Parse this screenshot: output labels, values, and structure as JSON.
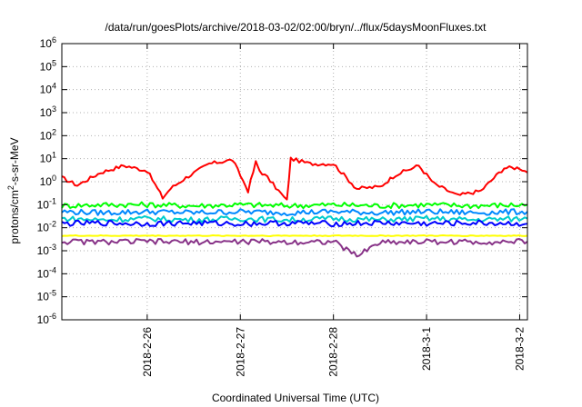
{
  "chart_data": {
    "type": "line",
    "title": "/data/run/goesPlots/archive/2018-03-02/02:00/bryn/../flux/5daysMoonFluxes.txt",
    "xlabel": "Coordinated Universal Time (UTC)",
    "ylabel": "protons/cm²-s-sr-MeV",
    "ylabel_parts": {
      "before": "protons/cm",
      "sup": "2",
      "after": "-s-sr-MeV"
    },
    "y_scale": "log",
    "ylim": [
      1e-06,
      1000000.0
    ],
    "y_ticks": [
      {
        "value": 1e-06,
        "base": "10",
        "exp": "-6"
      },
      {
        "value": 1e-05,
        "base": "10",
        "exp": "-5"
      },
      {
        "value": 0.0001,
        "base": "10",
        "exp": "-4"
      },
      {
        "value": 0.001,
        "base": "10",
        "exp": "-3"
      },
      {
        "value": 0.01,
        "base": "10",
        "exp": "-2"
      },
      {
        "value": 0.1,
        "base": "10",
        "exp": "-1"
      },
      {
        "value": 1.0,
        "base": "10",
        "exp": "0"
      },
      {
        "value": 10.0,
        "base": "10",
        "exp": "1"
      },
      {
        "value": 100.0,
        "base": "10",
        "exp": "2"
      },
      {
        "value": 1000.0,
        "base": "10",
        "exp": "3"
      },
      {
        "value": 10000.0,
        "base": "10",
        "exp": "4"
      },
      {
        "value": 100000.0,
        "base": "10",
        "exp": "5"
      },
      {
        "value": 1000000.0,
        "base": "10",
        "exp": "6"
      }
    ],
    "x_range": [
      "2018-02-25T02:00",
      "2018-03-02T02:00"
    ],
    "x_ticks": [
      {
        "time": "2018-02-26T00:00",
        "label": "2018-2-26"
      },
      {
        "time": "2018-02-27T00:00",
        "label": "2018-2-27"
      },
      {
        "time": "2018-02-28T00:00",
        "label": "2018-2-28"
      },
      {
        "time": "2018-03-01T00:00",
        "label": "2018-3-1"
      },
      {
        "time": "2018-03-02T00:00",
        "label": "2018-3-2"
      }
    ],
    "grid": true,
    "legend": "none",
    "series": [
      {
        "color": "#ff0000",
        "x": [
          "2018-02-25T02:00",
          "2018-02-25T06:00",
          "2018-02-25T12:00",
          "2018-02-25T18:00",
          "2018-02-26T00:00",
          "2018-02-26T04:00",
          "2018-02-26T06:00",
          "2018-02-26T10:00",
          "2018-02-26T16:00",
          "2018-02-26T22:00",
          "2018-02-27T02:00",
          "2018-02-27T04:00",
          "2018-02-27T05:00",
          "2018-02-27T07:00",
          "2018-02-27T12:00",
          "2018-02-27T13:00",
          "2018-02-27T18:00",
          "2018-02-28T00:00",
          "2018-02-28T06:00",
          "2018-02-28T12:00",
          "2018-02-28T16:00",
          "2018-02-28T22:00",
          "2018-03-01T02:00",
          "2018-03-01T08:00",
          "2018-03-01T14:00",
          "2018-03-01T20:00",
          "2018-03-02T00:00",
          "2018-03-02T02:00"
        ],
        "values": [
          1.5,
          0.7,
          2.5,
          5.0,
          3.0,
          0.2,
          0.5,
          1.5,
          6.0,
          9.0,
          0.4,
          7.0,
          3.0,
          1.5,
          0.15,
          10.0,
          6.0,
          6.0,
          0.5,
          0.6,
          2.0,
          5.0,
          0.8,
          0.25,
          0.4,
          4.0,
          4.0,
          2.5
        ]
      },
      {
        "color": "#00ff00",
        "x": [
          "2018-02-25T02:00",
          "2018-02-25T12:00",
          "2018-02-26T00:00",
          "2018-02-26T12:00",
          "2018-02-27T00:00",
          "2018-02-27T12:00",
          "2018-02-28T00:00",
          "2018-02-28T12:00",
          "2018-03-01T00:00",
          "2018-03-01T12:00",
          "2018-03-02T02:00"
        ],
        "values": [
          0.09,
          0.1,
          0.1,
          0.09,
          0.1,
          0.09,
          0.1,
          0.09,
          0.1,
          0.09,
          0.1
        ]
      },
      {
        "color": "#0088ff",
        "x": [
          "2018-02-25T02:00",
          "2018-02-25T12:00",
          "2018-02-26T00:00",
          "2018-02-26T12:00",
          "2018-02-27T00:00",
          "2018-02-27T12:00",
          "2018-02-28T00:00",
          "2018-02-28T12:00",
          "2018-03-01T00:00",
          "2018-03-01T12:00",
          "2018-03-02T02:00"
        ],
        "values": [
          0.05,
          0.045,
          0.05,
          0.045,
          0.05,
          0.045,
          0.05,
          0.045,
          0.05,
          0.045,
          0.05
        ]
      },
      {
        "color": "#00cccc",
        "x": [
          "2018-02-25T02:00",
          "2018-02-25T12:00",
          "2018-02-26T00:00",
          "2018-02-26T12:00",
          "2018-02-27T00:00",
          "2018-02-27T12:00",
          "2018-02-28T00:00",
          "2018-02-28T12:00",
          "2018-03-01T00:00",
          "2018-03-01T12:00",
          "2018-03-02T02:00"
        ],
        "values": [
          0.025,
          0.022,
          0.025,
          0.022,
          0.025,
          0.022,
          0.025,
          0.022,
          0.025,
          0.022,
          0.025
        ]
      },
      {
        "color": "#0000ff",
        "x": [
          "2018-02-25T02:00",
          "2018-02-25T12:00",
          "2018-02-26T00:00",
          "2018-02-26T12:00",
          "2018-02-27T00:00",
          "2018-02-27T12:00",
          "2018-02-28T00:00",
          "2018-02-28T12:00",
          "2018-03-01T00:00",
          "2018-03-01T12:00",
          "2018-03-02T02:00"
        ],
        "values": [
          0.015,
          0.016,
          0.015,
          0.016,
          0.015,
          0.016,
          0.015,
          0.016,
          0.015,
          0.016,
          0.015
        ]
      },
      {
        "color": "#ffff00",
        "x": [
          "2018-02-25T02:00",
          "2018-02-25T12:00",
          "2018-02-26T00:00",
          "2018-02-26T12:00",
          "2018-02-27T00:00",
          "2018-02-27T12:00",
          "2018-02-28T00:00",
          "2018-02-28T12:00",
          "2018-03-01T00:00",
          "2018-03-01T12:00",
          "2018-03-02T02:00"
        ],
        "values": [
          0.0045,
          0.0045,
          0.0045,
          0.0045,
          0.0045,
          0.0045,
          0.0045,
          0.0045,
          0.0045,
          0.0045,
          0.0045
        ]
      },
      {
        "color": "#883388",
        "x": [
          "2018-02-25T02:00",
          "2018-02-25T12:00",
          "2018-02-26T00:00",
          "2018-02-26T12:00",
          "2018-02-27T00:00",
          "2018-02-27T12:00",
          "2018-02-28T00:00",
          "2018-02-28T06:00",
          "2018-02-28T12:00",
          "2018-03-01T00:00",
          "2018-03-01T12:00",
          "2018-03-02T02:00"
        ],
        "values": [
          0.0025,
          0.0024,
          0.0025,
          0.0024,
          0.0025,
          0.0024,
          0.0025,
          0.0006,
          0.0024,
          0.0025,
          0.0024,
          0.0025
        ]
      }
    ]
  }
}
